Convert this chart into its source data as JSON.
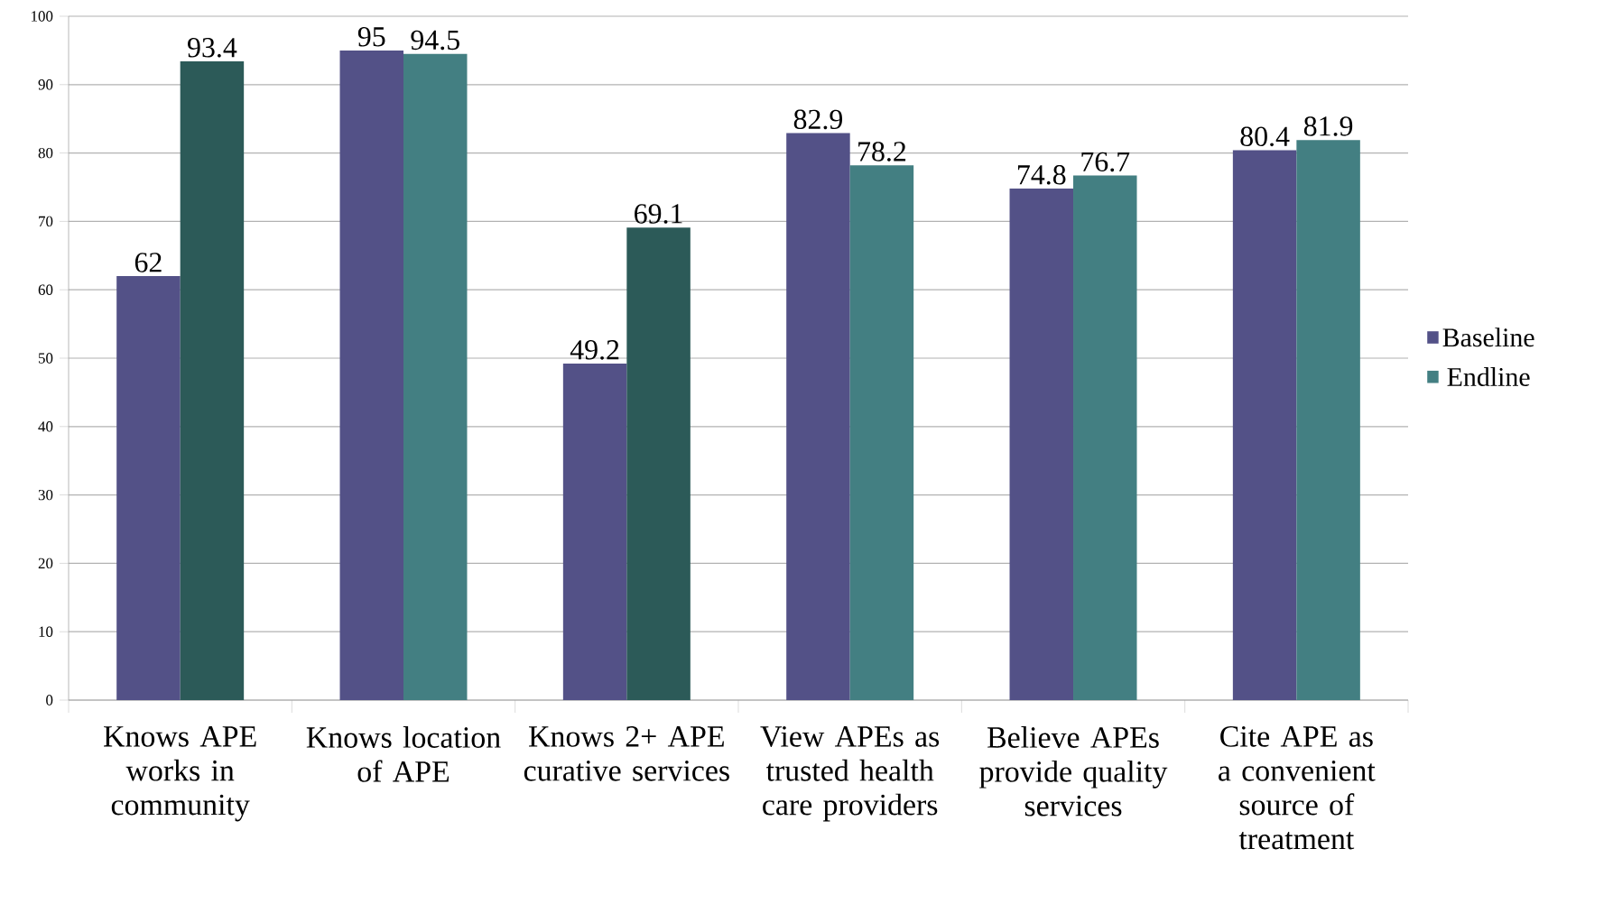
{
  "chart_data": {
    "type": "bar",
    "categories": [
      "Knows APE works in community",
      "Knows location of APE",
      "Knows 2+ APE curative services",
      "View APEs as trusted health care providers",
      "Believe APEs provide quality services",
      "Cite APE as a convenient source of treatment"
    ],
    "series": [
      {
        "name": "Baseline",
        "color": "#535187",
        "values": [
          62,
          95,
          49.2,
          82.9,
          74.8,
          80.4
        ]
      },
      {
        "name": "Endline",
        "color": "#437f82",
        "colors": [
          "#2c5a58",
          "#437f82",
          "#2c5a58",
          "#437f82",
          "#437f82",
          "#437f82"
        ],
        "values": [
          93.4,
          94.5,
          69.1,
          78.2,
          76.7,
          81.9
        ]
      }
    ],
    "ylim": [
      0,
      100
    ],
    "yticks": [
      0,
      10,
      20,
      30,
      40,
      50,
      60,
      70,
      80,
      90,
      100
    ],
    "grid": "y",
    "legend": "right",
    "data_labels": true
  }
}
